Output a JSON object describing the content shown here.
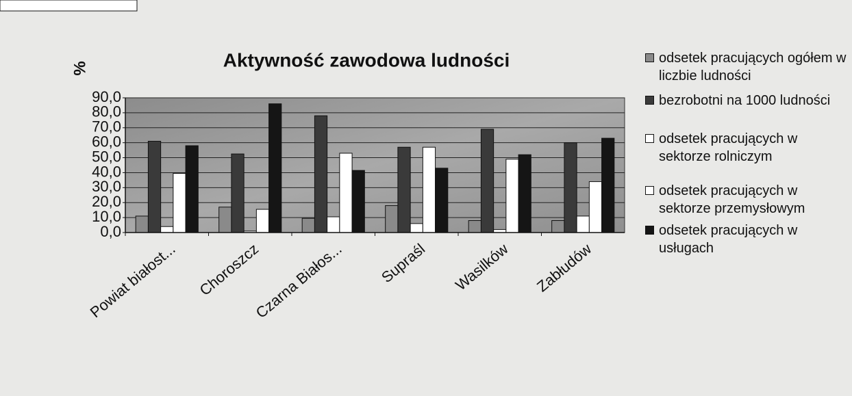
{
  "chart_data": {
    "type": "bar",
    "title": "Aktywność zawodowa ludności",
    "y_label": "%",
    "categories": [
      "Powiat białost...",
      "Choroszcz",
      "Czarna Białos...",
      "Supraśl",
      "Wasilków",
      "Zabłudów"
    ],
    "series": [
      {
        "name": "odsetek pracujących ogółem w liczbie ludności",
        "color": "#8a8a8a",
        "values": [
          11,
          17,
          9.5,
          18,
          8,
          8
        ]
      },
      {
        "name": "bezrobotni na 1000 ludności",
        "color": "#3a3a3a",
        "values": [
          61,
          52.5,
          78,
          57,
          69,
          60
        ]
      },
      {
        "name": "odsetek pracujących w sektorze rolniczym",
        "color": "#ffffff",
        "values": [
          4,
          1,
          10.5,
          6,
          2,
          11
        ]
      },
      {
        "name": "odsetek pracujących w sektorze przemysłowym",
        "color": "#ffffff",
        "values": [
          39.5,
          15.5,
          53,
          57,
          49,
          34
        ]
      },
      {
        "name": "odsetek pracujących w usługach",
        "color": "#151515",
        "values": [
          58,
          86,
          41.5,
          43,
          52,
          63
        ]
      }
    ],
    "ylim": [
      0,
      90
    ],
    "yticks": [
      {
        "value": 0,
        "label": "0,0"
      },
      {
        "value": 10,
        "label": "10,0"
      },
      {
        "value": 20,
        "label": "20,0"
      },
      {
        "value": 30,
        "label": "30,0"
      },
      {
        "value": 40,
        "label": "40,0"
      },
      {
        "value": 50,
        "label": "50,0"
      },
      {
        "value": 60,
        "label": "60,0"
      },
      {
        "value": 70,
        "label": "70,0"
      },
      {
        "value": 80,
        "label": "80,0"
      },
      {
        "value": 90,
        "label": "90,0"
      }
    ],
    "grid": true
  }
}
